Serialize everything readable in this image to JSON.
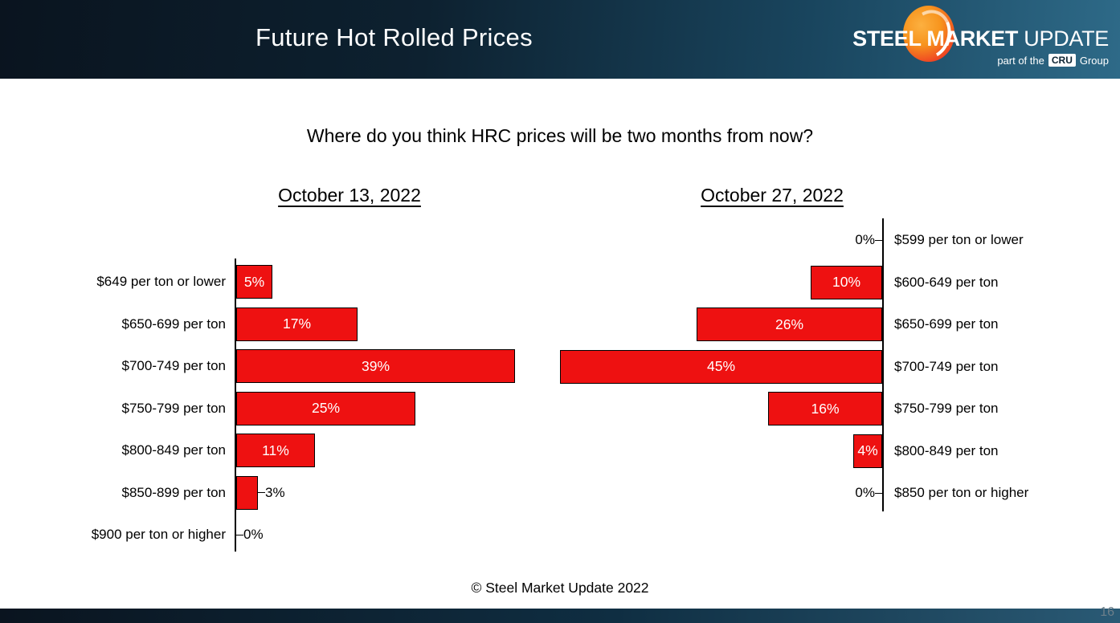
{
  "header": {
    "title": "Future Hot Rolled Prices",
    "logo": {
      "brand_bold": "STEEL MARKET",
      "brand_light": "UPDATE",
      "tagline_prefix": "part of the",
      "tagline_cru": "CRU",
      "tagline_suffix": "Group"
    }
  },
  "question": "Where do you think HRC prices will be two months from now?",
  "footer": "© Steel Market Update 2022",
  "page_number": "16",
  "colors": {
    "bar_fill": "#ee1111",
    "bar_border": "#000000",
    "header_gradient_left": "#0a141f",
    "header_gradient_right": "#2e6a88",
    "title_text": "#ffffff"
  },
  "chart_data": [
    {
      "type": "bar",
      "title": "October 13, 2022",
      "orientation": "horizontal-bars-extend-right",
      "value_unit": "%",
      "xlim": [
        0,
        45
      ],
      "grid": false,
      "legend": "none",
      "categories": [
        "$649 per ton or lower",
        "$650-699 per ton",
        "$700-749 per ton",
        "$750-799 per ton",
        "$800-849 per ton",
        "$850-899 per ton",
        "$900 per ton or higher"
      ],
      "values": [
        5,
        17,
        39,
        25,
        11,
        3,
        0
      ],
      "labels": [
        "5%",
        "17%",
        "39%",
        "25%",
        "11%",
        "3%",
        "0%"
      ]
    },
    {
      "type": "bar",
      "title": "October 27, 2022",
      "orientation": "horizontal-bars-extend-left",
      "value_unit": "%",
      "xlim": [
        0,
        45
      ],
      "grid": false,
      "legend": "none",
      "categories": [
        "$599 per ton or lower",
        "$600-649 per ton",
        "$650-699 per ton",
        "$700-749 per ton",
        "$750-799 per ton",
        "$800-849 per ton",
        "$850 per ton or higher"
      ],
      "values": [
        0,
        10,
        26,
        45,
        16,
        4,
        0
      ],
      "labels": [
        "0%",
        "10%",
        "26%",
        "45%",
        "16%",
        "4%",
        "0%"
      ]
    }
  ]
}
